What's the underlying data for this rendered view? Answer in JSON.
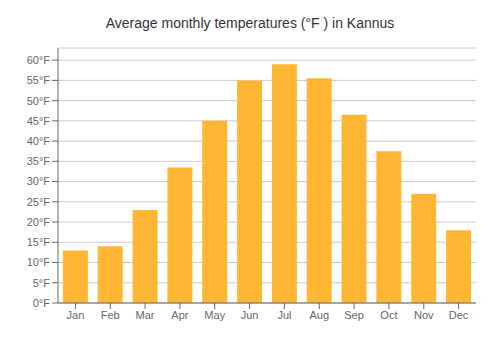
{
  "chart_data": {
    "type": "bar",
    "title": "Average monthly temperatures (°F ) in Kannus",
    "categories": [
      "Jan",
      "Feb",
      "Mar",
      "Apr",
      "May",
      "Jun",
      "Jul",
      "Aug",
      "Sep",
      "Oct",
      "Nov",
      "Dec"
    ],
    "values": [
      13,
      14,
      23,
      33.5,
      45,
      55,
      59,
      55.5,
      46.5,
      37.5,
      27,
      18
    ],
    "color": "#FFB733",
    "ylim": [
      0,
      63
    ],
    "yticks": [
      {
        "value": 0,
        "label": "0°F"
      },
      {
        "value": 5,
        "label": "5°F"
      },
      {
        "value": 10,
        "label": "10°F"
      },
      {
        "value": 15,
        "label": "15°F"
      },
      {
        "value": 20,
        "label": "20°F"
      },
      {
        "value": 25,
        "label": "25°F"
      },
      {
        "value": 30,
        "label": "30°F"
      },
      {
        "value": 35,
        "label": "35°F"
      },
      {
        "value": 40,
        "label": "40°F"
      },
      {
        "value": 45,
        "label": "45°F"
      },
      {
        "value": 50,
        "label": "50°F"
      },
      {
        "value": 55,
        "label": "55°F"
      },
      {
        "value": 60,
        "label": "60°F"
      }
    ],
    "grid": true
  }
}
